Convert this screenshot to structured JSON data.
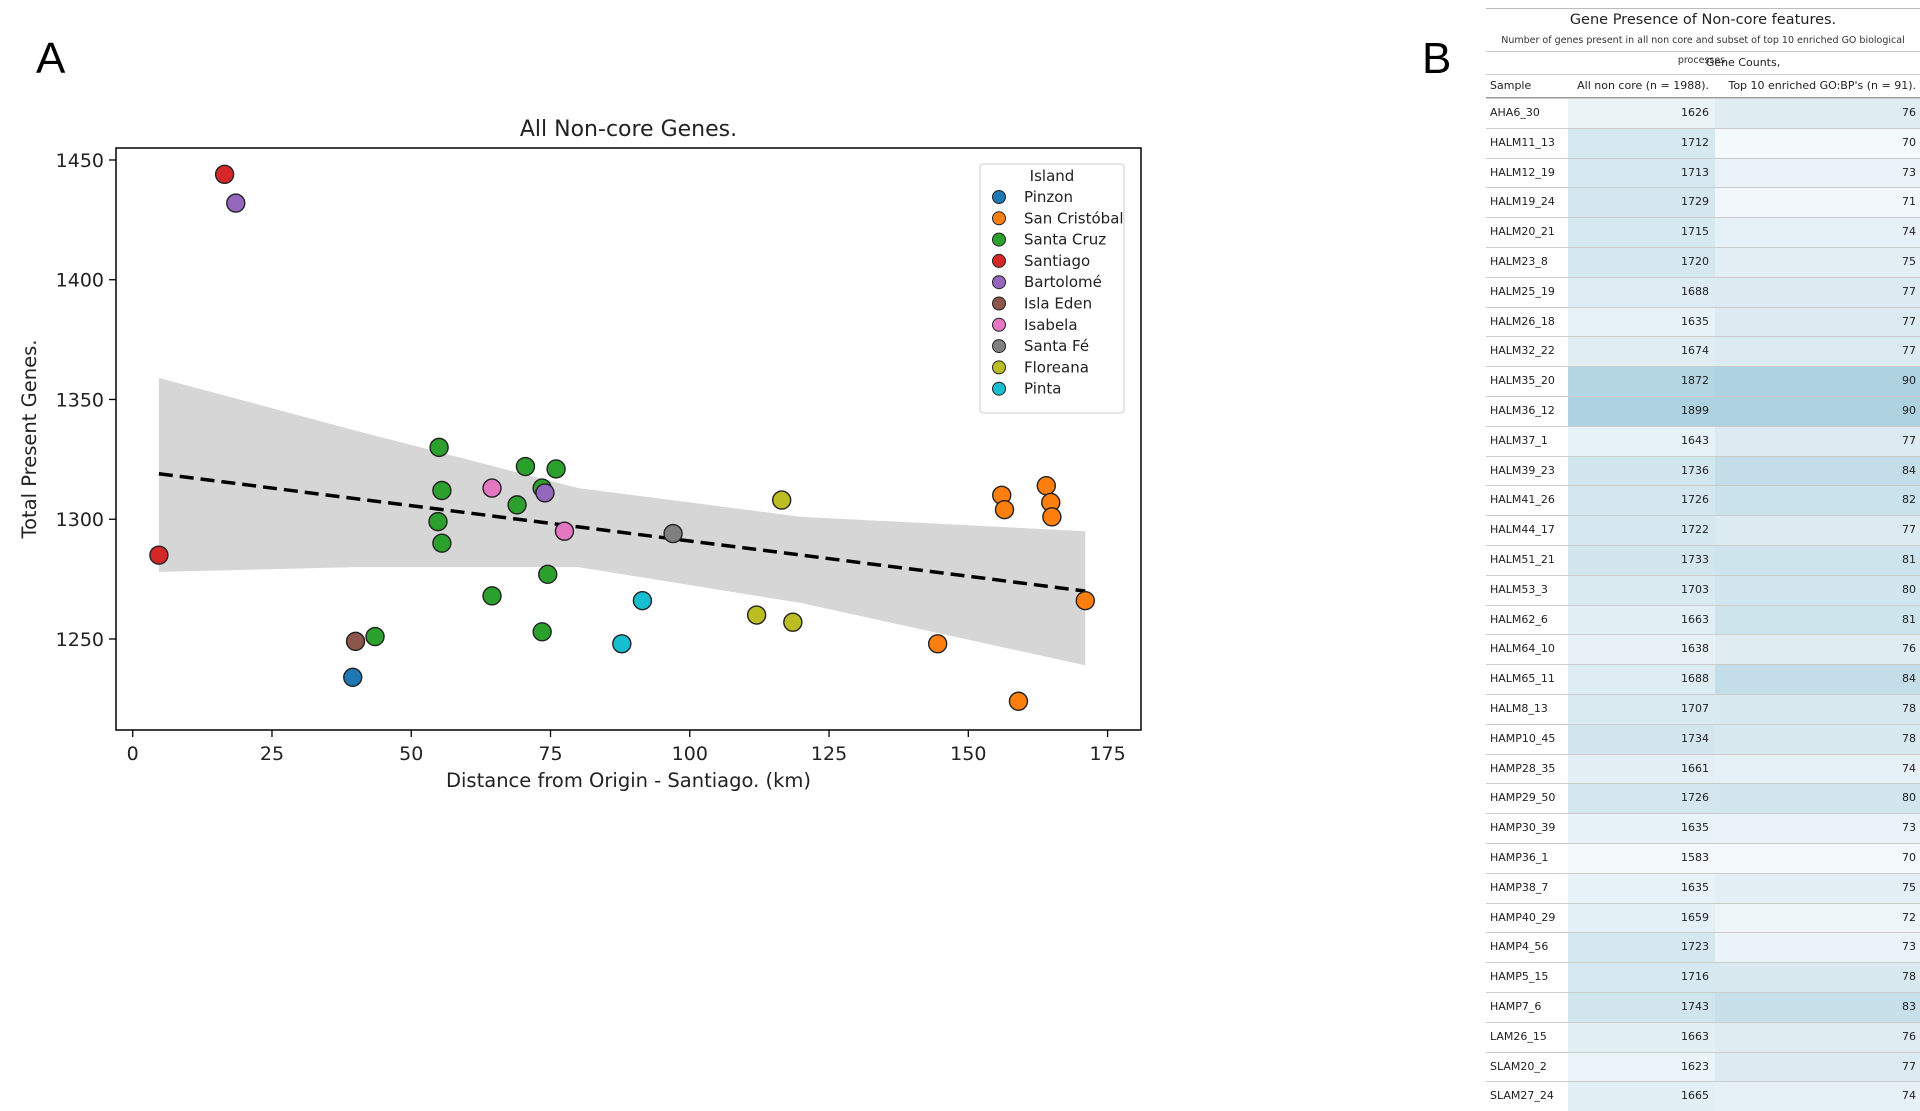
{
  "panel_a_label": "A",
  "panel_b_label": "B",
  "chart_data": {
    "type": "scatter",
    "title": "All Non-core Genes.",
    "xlabel": "Distance from Origin - Santiago. (km)",
    "ylabel": "Total Present Genes.",
    "xlim": [
      -3,
      181
    ],
    "ylim": [
      1212,
      1455
    ],
    "xticks": [
      0,
      25,
      50,
      75,
      100,
      125,
      150,
      175
    ],
    "yticks": [
      1250,
      1300,
      1350,
      1400,
      1450
    ],
    "grid": false,
    "legend": {
      "title": "Island",
      "position": "top-right"
    },
    "series": [
      {
        "name": "Pinzon",
        "color": "#1f77b4",
        "points": [
          [
            39.5,
            1234
          ]
        ]
      },
      {
        "name": "San Cristóbal",
        "color": "#ff7f0e",
        "points": [
          [
            156,
            1310
          ],
          [
            156.5,
            1304
          ],
          [
            164,
            1314
          ],
          [
            164.8,
            1307
          ],
          [
            165,
            1301
          ],
          [
            171,
            1266
          ],
          [
            144.5,
            1248
          ],
          [
            159,
            1224
          ]
        ]
      },
      {
        "name": "Santa Cruz",
        "color": "#2ca02c",
        "points": [
          [
            55,
            1330
          ],
          [
            55.5,
            1312
          ],
          [
            54.8,
            1299
          ],
          [
            55.5,
            1290
          ],
          [
            70.5,
            1322
          ],
          [
            76,
            1321
          ],
          [
            73.5,
            1313
          ],
          [
            69,
            1306
          ],
          [
            74.5,
            1277
          ],
          [
            64.5,
            1268
          ],
          [
            43.5,
            1251
          ],
          [
            73.5,
            1253
          ]
        ]
      },
      {
        "name": "Santiago",
        "color": "#d62728",
        "points": [
          [
            16.5,
            1444
          ],
          [
            4.7,
            1285
          ]
        ]
      },
      {
        "name": "Bartolomé",
        "color": "#9467bd",
        "points": [
          [
            18.5,
            1432
          ],
          [
            74,
            1311
          ]
        ]
      },
      {
        "name": "Isla Eden",
        "color": "#8c564b",
        "points": [
          [
            40,
            1249
          ]
        ]
      },
      {
        "name": "Isabela",
        "color": "#e377c2",
        "points": [
          [
            64.5,
            1313
          ],
          [
            77.5,
            1295
          ]
        ]
      },
      {
        "name": "Santa Fé",
        "color": "#7f7f7f",
        "points": [
          [
            97,
            1294
          ]
        ]
      },
      {
        "name": "Floreana",
        "color": "#bcbd22",
        "points": [
          [
            116.5,
            1308
          ],
          [
            112,
            1260
          ],
          [
            118.5,
            1257
          ]
        ]
      },
      {
        "name": "Pinta",
        "color": "#17becf",
        "points": [
          [
            91.5,
            1266
          ],
          [
            87.8,
            1248
          ]
        ]
      }
    ],
    "regression": {
      "x": [
        4.7,
        171
      ],
      "y": [
        1319,
        1270
      ]
    },
    "confidence_band": {
      "x": [
        4.7,
        40,
        80,
        120,
        171
      ],
      "upper": [
        1359,
        1337,
        1313,
        1301,
        1295
      ],
      "lower": [
        1278,
        1280,
        1280,
        1265,
        1239
      ]
    }
  },
  "table": {
    "title": "Gene Presence of Non-core features.",
    "subtitle": "Number of genes present in all non core and subset of top 10 enriched GO biological processes.",
    "group_header": "Gene Counts,",
    "headers": [
      "Sample",
      "All non core (n = 1988).",
      "Top 10 enriched GO:BP's (n = 91)."
    ],
    "rows": [
      {
        "sample": "AHA6_30",
        "all": 1626,
        "top": 76
      },
      {
        "sample": "HALM11_13",
        "all": 1712,
        "top": 70
      },
      {
        "sample": "HALM12_19",
        "all": 1713,
        "top": 73
      },
      {
        "sample": "HALM19_24",
        "all": 1729,
        "top": 71
      },
      {
        "sample": "HALM20_21",
        "all": 1715,
        "top": 74
      },
      {
        "sample": "HALM23_8",
        "all": 1720,
        "top": 75
      },
      {
        "sample": "HALM25_19",
        "all": 1688,
        "top": 77
      },
      {
        "sample": "HALM26_18",
        "all": 1635,
        "top": 77
      },
      {
        "sample": "HALM32_22",
        "all": 1674,
        "top": 77
      },
      {
        "sample": "HALM35_20",
        "all": 1872,
        "top": 90
      },
      {
        "sample": "HALM36_12",
        "all": 1899,
        "top": 90
      },
      {
        "sample": "HALM37_1",
        "all": 1643,
        "top": 77
      },
      {
        "sample": "HALM39_23",
        "all": 1736,
        "top": 84
      },
      {
        "sample": "HALM41_26",
        "all": 1726,
        "top": 82
      },
      {
        "sample": "HALM44_17",
        "all": 1722,
        "top": 77
      },
      {
        "sample": "HALM51_21",
        "all": 1733,
        "top": 81
      },
      {
        "sample": "HALM53_3",
        "all": 1703,
        "top": 80
      },
      {
        "sample": "HALM62_6",
        "all": 1663,
        "top": 81
      },
      {
        "sample": "HALM64_10",
        "all": 1638,
        "top": 76
      },
      {
        "sample": "HALM65_11",
        "all": 1688,
        "top": 84
      },
      {
        "sample": "HALM8_13",
        "all": 1707,
        "top": 78
      },
      {
        "sample": "HAMP10_45",
        "all": 1734,
        "top": 78
      },
      {
        "sample": "HAMP28_35",
        "all": 1661,
        "top": 74
      },
      {
        "sample": "HAMP29_50",
        "all": 1726,
        "top": 80
      },
      {
        "sample": "HAMP30_39",
        "all": 1635,
        "top": 73
      },
      {
        "sample": "HAMP36_1",
        "all": 1583,
        "top": 70
      },
      {
        "sample": "HAMP38_7",
        "all": 1635,
        "top": 75
      },
      {
        "sample": "HAMP40_29",
        "all": 1659,
        "top": 72
      },
      {
        "sample": "HAMP4_56",
        "all": 1723,
        "top": 73
      },
      {
        "sample": "HAMP5_15",
        "all": 1716,
        "top": 78
      },
      {
        "sample": "HAMP7_6",
        "all": 1743,
        "top": 83
      },
      {
        "sample": "LAM26_15",
        "all": 1663,
        "top": 76
      },
      {
        "sample": "SLAM20_2",
        "all": 1623,
        "top": 77
      },
      {
        "sample": "SLAM27_24",
        "all": 1665,
        "top": 74
      }
    ]
  }
}
